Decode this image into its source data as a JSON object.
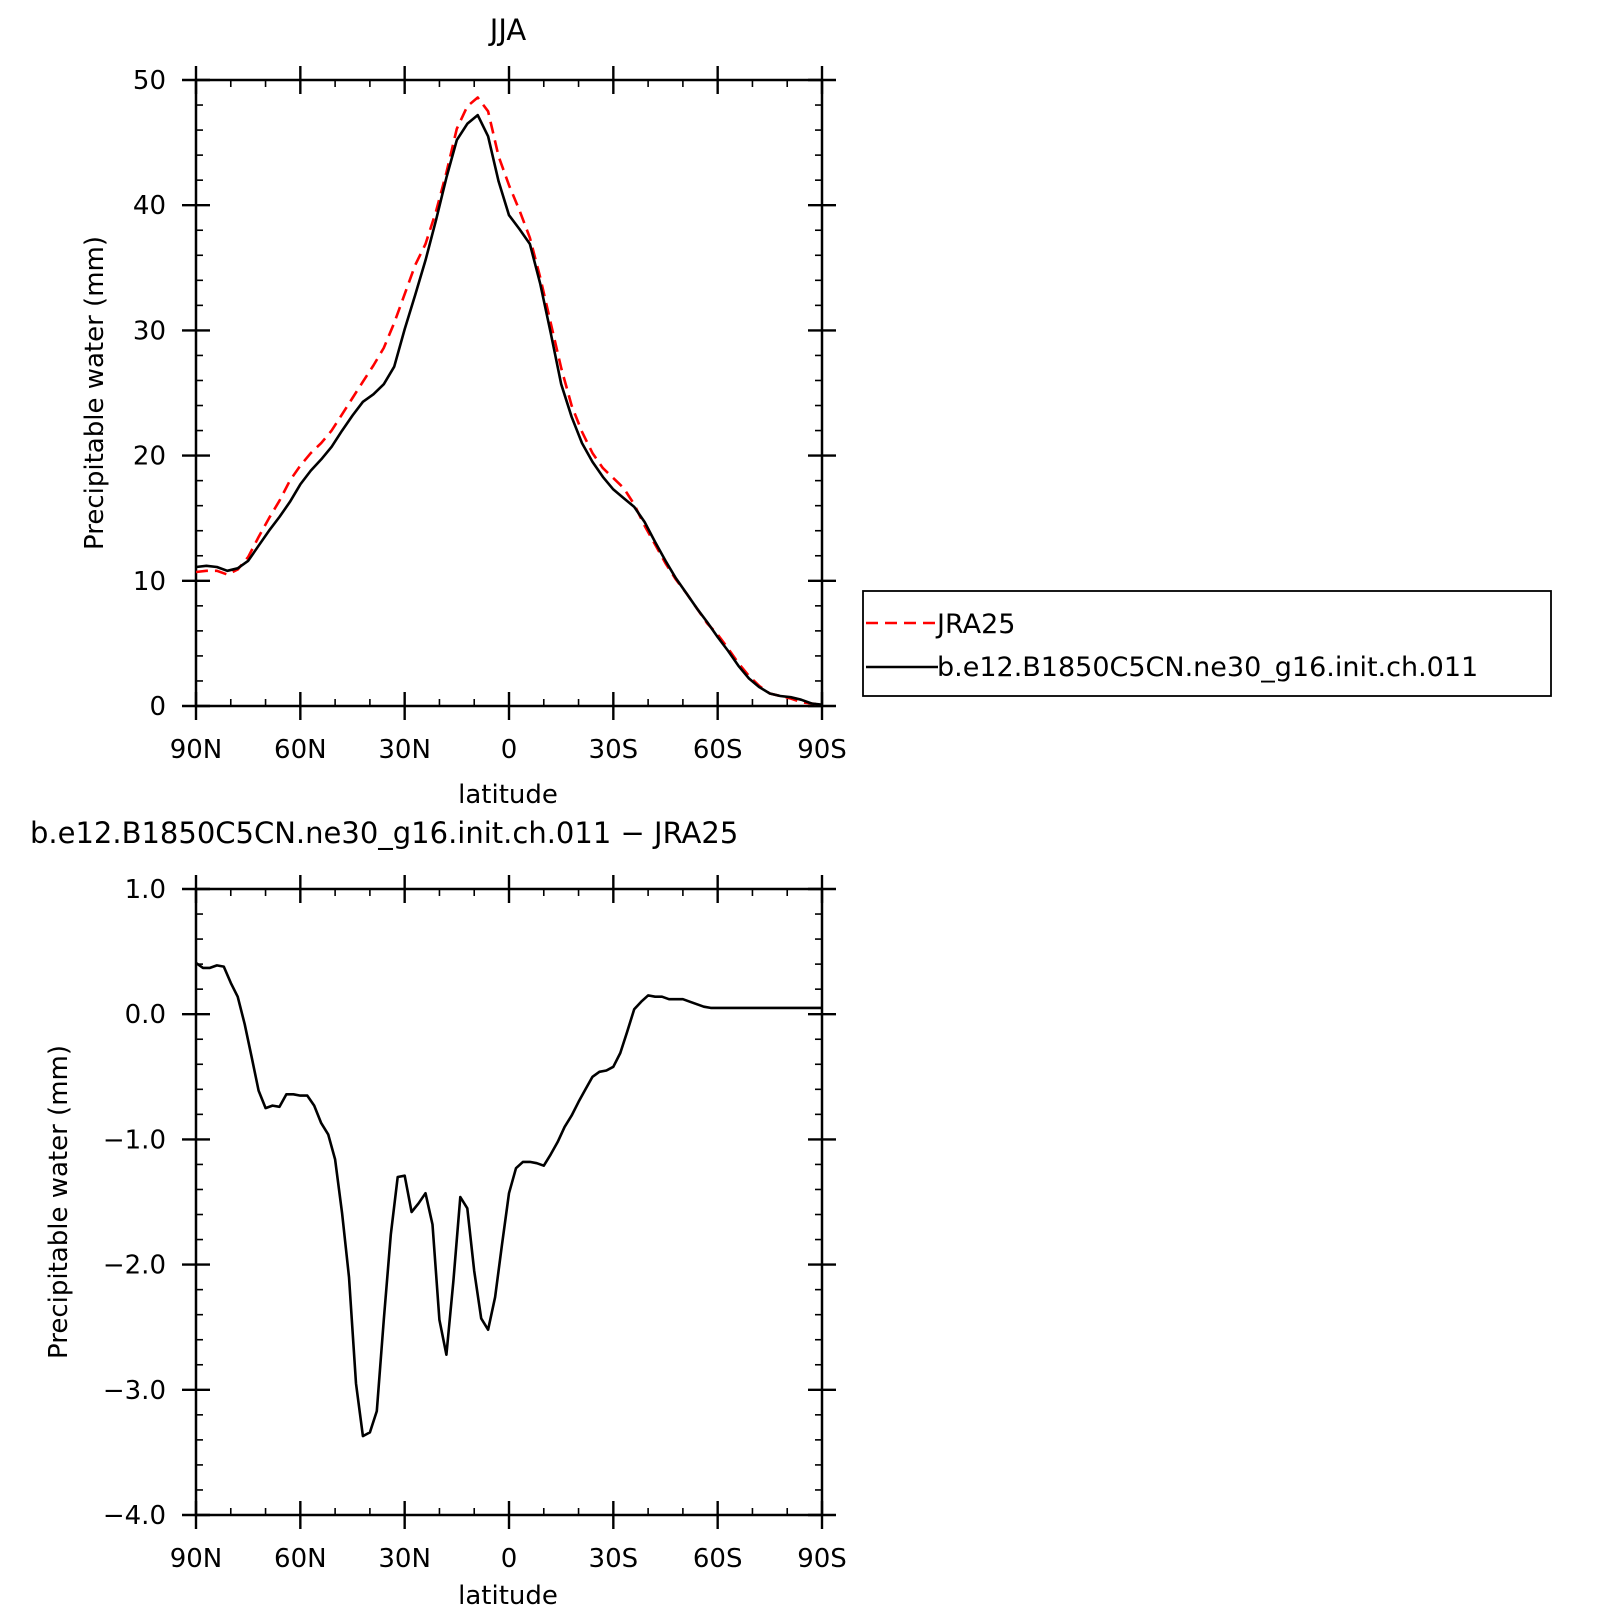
{
  "chart_data": [
    {
      "type": "line",
      "title": "JJA",
      "xlabel": "latitude",
      "ylabel": "Precipitable water (mm)",
      "xlim": [
        90,
        -90
      ],
      "ylim": [
        0,
        50
      ],
      "x_ticks": [
        90,
        60,
        30,
        0,
        -30,
        -60,
        -90
      ],
      "x_tick_labels": [
        "90N",
        "60N",
        "30N",
        "0",
        "30S",
        "60S",
        "90S"
      ],
      "y_ticks": [
        0,
        10,
        20,
        30,
        40,
        50
      ],
      "y_tick_labels": [
        "0",
        "10",
        "20",
        "30",
        "40",
        "50"
      ],
      "grid": false,
      "legend": {
        "placement": "right",
        "entries": [
          "JRA25",
          "b.e12.B1850C5CN.ne30_g16.init.ch.011"
        ]
      },
      "series": [
        {
          "name": "JRA25",
          "color": "#ff0000",
          "style": "dashed",
          "x": [
            90,
            87,
            84,
            81,
            78,
            75,
            72,
            69,
            66,
            63,
            60,
            57,
            54,
            51,
            48,
            45,
            42,
            39,
            36,
            33,
            30,
            27,
            24,
            21,
            18,
            15,
            12,
            9,
            6,
            3,
            0,
            -3,
            -6,
            -9,
            -12,
            -15,
            -18,
            -21,
            -24,
            -27,
            -30,
            -33,
            -36,
            -39,
            -42,
            -45,
            -48,
            -51,
            -54,
            -57,
            -60,
            -63,
            -66,
            -69,
            -72,
            -75,
            -78,
            -81,
            -84,
            -87,
            -90
          ],
          "y": [
            10.7,
            10.8,
            10.8,
            10.5,
            10.9,
            11.9,
            13.5,
            15.0,
            16.4,
            18.0,
            19.2,
            20.2,
            21.0,
            22.0,
            23.3,
            24.6,
            25.9,
            27.2,
            28.6,
            30.6,
            32.9,
            35.2,
            36.9,
            39.5,
            42.6,
            46.1,
            47.9,
            48.6,
            47.5,
            43.9,
            41.6,
            39.6,
            37.4,
            34.2,
            30.6,
            27.0,
            24.0,
            21.9,
            20.2,
            19.0,
            18.2,
            17.4,
            16.1,
            14.4,
            12.9,
            11.4,
            10.1,
            9.0,
            7.8,
            6.6,
            5.7,
            4.6,
            3.4,
            2.4,
            1.6,
            1.0,
            0.8,
            0.6,
            0.3,
            0.2,
            0.1
          ]
        },
        {
          "name": "b.e12.B1850C5CN.ne30_g16.init.ch.011",
          "color": "#000000",
          "style": "solid",
          "x": [
            90,
            87,
            84,
            81,
            78,
            75,
            72,
            69,
            66,
            63,
            60,
            57,
            54,
            51,
            48,
            45,
            42,
            39,
            36,
            33,
            30,
            27,
            24,
            21,
            18,
            15,
            12,
            9,
            6,
            3,
            0,
            -3,
            -6,
            -9,
            -12,
            -15,
            -18,
            -21,
            -24,
            -27,
            -30,
            -33,
            -36,
            -39,
            -42,
            -45,
            -48,
            -51,
            -54,
            -57,
            -60,
            -63,
            -66,
            -69,
            -72,
            -75,
            -78,
            -81,
            -84,
            -87,
            -90
          ],
          "y": [
            11.1,
            11.2,
            11.1,
            10.8,
            11.0,
            11.6,
            12.8,
            14.0,
            15.1,
            16.3,
            17.7,
            18.8,
            19.7,
            20.7,
            22.0,
            23.2,
            24.3,
            24.9,
            25.7,
            27.1,
            30.1,
            32.8,
            35.6,
            38.8,
            42.2,
            45.2,
            46.5,
            47.2,
            45.5,
            41.9,
            39.2,
            38.1,
            36.9,
            33.7,
            29.8,
            25.7,
            23.1,
            21.0,
            19.5,
            18.3,
            17.3,
            16.6,
            15.9,
            14.7,
            13.1,
            11.6,
            10.2,
            9.0,
            7.8,
            6.7,
            5.5,
            4.4,
            3.2,
            2.2,
            1.5,
            1.0,
            0.8,
            0.7,
            0.5,
            0.2,
            0.1
          ]
        }
      ]
    },
    {
      "type": "line",
      "title": "b.e12.B1850C5CN.ne30_g16.init.ch.011 − JRA25",
      "xlabel": "latitude",
      "ylabel": "Precipitable water (mm)",
      "xlim": [
        90,
        -90
      ],
      "ylim": [
        -4.0,
        1.0
      ],
      "x_ticks": [
        90,
        60,
        30,
        0,
        -30,
        -60,
        -90
      ],
      "x_tick_labels": [
        "90N",
        "60N",
        "30N",
        "0",
        "30S",
        "60S",
        "90S"
      ],
      "y_ticks": [
        1.0,
        0.0,
        -1.0,
        -2.0,
        -3.0,
        -4.0
      ],
      "y_tick_labels": [
        "1.0",
        "0.0",
        "−1.0",
        "−2.0",
        "−3.0",
        "−4.0"
      ],
      "grid": false,
      "series": [
        {
          "color": "#000000",
          "style": "solid",
          "x": [
            90,
            88,
            86,
            84,
            82,
            80,
            78,
            76,
            74,
            72,
            70,
            68,
            66,
            64,
            62,
            60,
            58,
            56,
            54,
            52,
            50,
            48,
            46,
            44,
            42,
            40,
            38,
            36,
            34,
            32,
            30,
            28,
            26,
            24,
            22,
            20,
            18,
            16,
            14,
            12,
            10,
            8,
            6,
            4,
            2,
            0,
            -2,
            -4,
            -6,
            -8,
            -10,
            -12,
            -14,
            -16,
            -18,
            -20,
            -22,
            -24,
            -26,
            -28,
            -30,
            -32,
            -34,
            -36,
            -38,
            -40,
            -42,
            -44,
            -46,
            -48,
            -50,
            -52,
            -54,
            -56,
            -58,
            -60,
            -62,
            -64,
            -66,
            -68,
            -70,
            -72,
            -74,
            -76,
            -78,
            -80,
            -82,
            -84,
            -86,
            -88,
            -90
          ],
          "y": [
            0.41,
            0.37,
            0.37,
            0.39,
            0.38,
            0.25,
            0.14,
            -0.08,
            -0.34,
            -0.61,
            -0.75,
            -0.73,
            -0.74,
            -0.64,
            -0.64,
            -0.65,
            -0.65,
            -0.73,
            -0.87,
            -0.96,
            -1.16,
            -1.59,
            -2.1,
            -2.95,
            -3.37,
            -3.34,
            -3.17,
            -2.44,
            -1.76,
            -1.3,
            -1.29,
            -1.58,
            -1.51,
            -1.43,
            -1.68,
            -2.44,
            -2.72,
            -2.13,
            -1.46,
            -1.55,
            -2.05,
            -2.43,
            -2.52,
            -2.26,
            -1.84,
            -1.43,
            -1.23,
            -1.18,
            -1.18,
            -1.19,
            -1.21,
            -1.12,
            -1.02,
            -0.9,
            -0.81,
            -0.7,
            -0.6,
            -0.5,
            -0.46,
            -0.45,
            -0.42,
            -0.31,
            -0.14,
            0.04,
            0.1,
            0.15,
            0.14,
            0.14,
            0.12,
            0.12,
            0.12,
            0.1,
            0.08,
            0.06,
            0.05,
            0.05,
            0.05,
            0.05,
            0.05,
            0.05,
            0.05,
            0.05,
            0.05,
            0.05,
            0.05,
            0.05,
            0.05,
            0.05,
            0.05,
            0.05,
            0.05
          ]
        }
      ]
    }
  ]
}
